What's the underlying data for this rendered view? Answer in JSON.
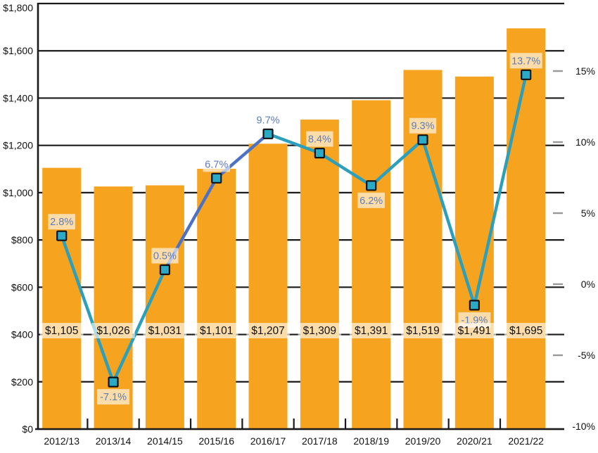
{
  "chart_data": {
    "type": "bar",
    "subtype": "bar-line-combo",
    "title": "",
    "categories": [
      "2012/13",
      "2013/14",
      "2014/15",
      "2015/16",
      "2016/17",
      "2017/18",
      "2018/19",
      "2019/20",
      "2020/21",
      "2021/22"
    ],
    "series": [
      {
        "name": "dollar-amount",
        "type": "bar",
        "values": [
          1105,
          1026,
          1031,
          1101,
          1207,
          1309,
          1391,
          1519,
          1491,
          1695
        ],
        "labels": [
          "$1,105",
          "$1,026",
          "$1,031",
          "$1,101",
          "$1,207",
          "$1,309",
          "$1,391",
          "$1,519",
          "$1,491",
          "$1,695"
        ],
        "color": "#F6A31F"
      },
      {
        "name": "percent-change",
        "type": "line",
        "values": [
          2.8,
          -7.1,
          0.5,
          6.7,
          9.7,
          8.4,
          6.2,
          9.3,
          -1.9,
          13.7
        ],
        "labels": [
          "2.8%",
          "-7.1%",
          "0.5%",
          "6.7%",
          "9.7%",
          "8.4%",
          "6.2%",
          "9.3%",
          "-1.9%",
          "13.7%"
        ],
        "color": "#2B9FBC",
        "alt_segment_color": "#4B72C4",
        "alt_segments": [
          2,
          3
        ],
        "marker_color": "#2BAAC8",
        "marker_border": "#111111",
        "labels_below": [
          1,
          6,
          8
        ]
      }
    ],
    "left_axis": {
      "ticks": [
        "$0",
        "$200",
        "$400",
        "$600",
        "$800",
        "$1,000",
        "$1,200",
        "$1,400",
        "$1,600",
        "$1,800"
      ],
      "min": 0,
      "max": 1800,
      "step": 200
    },
    "right_axis": {
      "ticks": [
        "15%",
        "10%",
        "5%",
        "0%",
        "-5%",
        "-10%"
      ],
      "values": [
        15,
        10,
        5,
        0,
        -5,
        -10
      ]
    },
    "grid": "on",
    "legend": "none",
    "colors": {
      "grid": "#1a1a1a",
      "axis": "#1a1a1a",
      "right_tick_dash": "#999999",
      "pct_label_text": "#5C7DBA",
      "value_label_text": "#111111",
      "label_bg": "rgba(255,255,255,0.62)",
      "background": "#ffffff"
    }
  }
}
